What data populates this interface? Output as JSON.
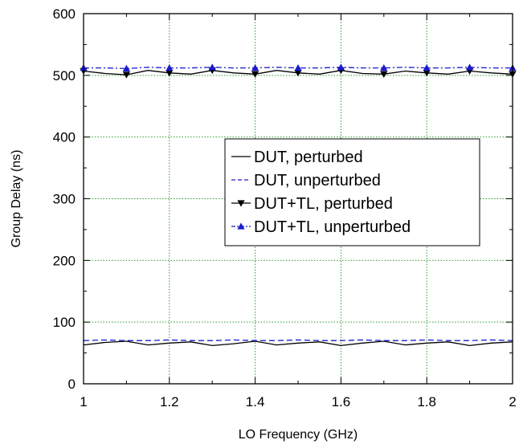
{
  "chart_data": {
    "type": "line",
    "title": "",
    "xlabel": "LO Frequency (GHz)",
    "ylabel": "Group Delay (ns)",
    "xlim": [
      1,
      2
    ],
    "ylim": [
      0,
      600
    ],
    "xticks": [
      1,
      1.2,
      1.4,
      1.6,
      1.8,
      2
    ],
    "xtick_labels": [
      "1",
      "1.2",
      "1.4",
      "1.6",
      "1.8",
      "2"
    ],
    "yticks": [
      0,
      100,
      200,
      300,
      400,
      500,
      600
    ],
    "ytick_labels": [
      "0",
      "100",
      "200",
      "300",
      "400",
      "500",
      "600"
    ],
    "grid": true,
    "legend_position": "center-right",
    "x": [
      1.0,
      1.05,
      1.1,
      1.15,
      1.2,
      1.25,
      1.3,
      1.35,
      1.4,
      1.45,
      1.5,
      1.55,
      1.6,
      1.65,
      1.7,
      1.75,
      1.8,
      1.85,
      1.9,
      1.95,
      2.0
    ],
    "series": [
      {
        "name": "DUT, perturbed",
        "color": "#000000",
        "style": "solid",
        "marker": "none",
        "values": [
          63,
          67,
          69,
          63,
          66,
          68,
          62,
          65,
          69,
          63,
          66,
          68,
          62,
          66,
          69,
          63,
          66,
          68,
          62,
          66,
          68
        ]
      },
      {
        "name": "DUT, unperturbed",
        "color": "#1a1acc",
        "style": "dash",
        "marker": "none",
        "values": [
          70,
          71,
          70,
          70,
          71,
          70,
          70,
          71,
          70,
          70,
          71,
          70,
          70,
          71,
          70,
          70,
          71,
          70,
          70,
          71,
          70
        ]
      },
      {
        "name": "DUT+TL, perturbed",
        "color": "#000000",
        "style": "solid",
        "marker": "triangle-down",
        "values": [
          507,
          503,
          501,
          508,
          504,
          502,
          508,
          504,
          502,
          508,
          504,
          502,
          508,
          503,
          502,
          507,
          504,
          502,
          507,
          504,
          502
        ]
      },
      {
        "name": "DUT+TL, unperturbed",
        "color": "#1a1acc",
        "style": "dashdot",
        "marker": "triangle-up",
        "values": [
          512,
          512,
          511,
          513,
          512,
          512,
          513,
          512,
          512,
          513,
          512,
          512,
          513,
          512,
          512,
          513,
          512,
          512,
          513,
          512,
          512
        ]
      }
    ]
  }
}
